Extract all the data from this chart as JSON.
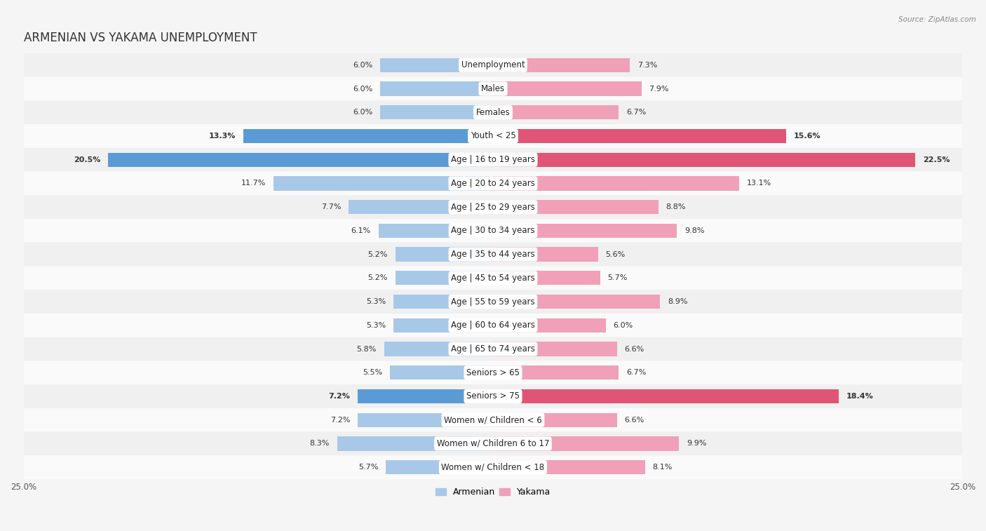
{
  "title": "ARMENIAN VS YAKAMA UNEMPLOYMENT",
  "source": "Source: ZipAtlas.com",
  "categories": [
    "Unemployment",
    "Males",
    "Females",
    "Youth < 25",
    "Age | 16 to 19 years",
    "Age | 20 to 24 years",
    "Age | 25 to 29 years",
    "Age | 30 to 34 years",
    "Age | 35 to 44 years",
    "Age | 45 to 54 years",
    "Age | 55 to 59 years",
    "Age | 60 to 64 years",
    "Age | 65 to 74 years",
    "Seniors > 65",
    "Seniors > 75",
    "Women w/ Children < 6",
    "Women w/ Children 6 to 17",
    "Women w/ Children < 18"
  ],
  "armenian": [
    6.0,
    6.0,
    6.0,
    13.3,
    20.5,
    11.7,
    7.7,
    6.1,
    5.2,
    5.2,
    5.3,
    5.3,
    5.8,
    5.5,
    7.2,
    7.2,
    8.3,
    5.7
  ],
  "yakama": [
    7.3,
    7.9,
    6.7,
    15.6,
    22.5,
    13.1,
    8.8,
    9.8,
    5.6,
    5.7,
    8.9,
    6.0,
    6.6,
    6.7,
    18.4,
    6.6,
    9.9,
    8.1
  ],
  "armenian_color": "#a8c8e8",
  "yakama_color": "#f0a0b8",
  "highlight_armenian_color": "#5b9bd5",
  "highlight_yakama_color": "#e05575",
  "highlight_rows": [
    3,
    4,
    14
  ],
  "row_bg_even": "#f0f0f0",
  "row_bg_odd": "#fafafa",
  "axis_max": 25.0,
  "legend_armenian": "Armenian",
  "legend_yakama": "Yakama",
  "title_fontsize": 12,
  "label_fontsize": 8.5,
  "value_fontsize": 8.0,
  "axis_label_fontsize": 8.5
}
